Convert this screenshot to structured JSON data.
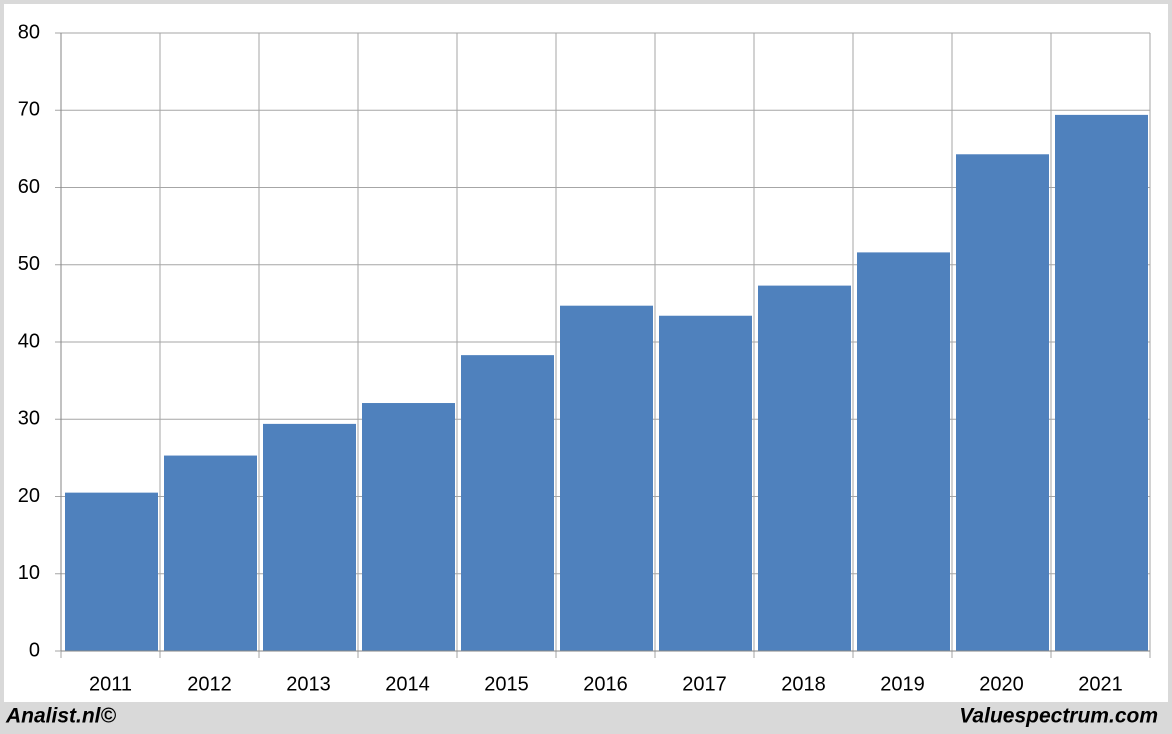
{
  "chart_data": {
    "type": "bar",
    "categories": [
      "2011",
      "2012",
      "2013",
      "2014",
      "2015",
      "2016",
      "2017",
      "2018",
      "2019",
      "2020",
      "2021"
    ],
    "values": [
      20.5,
      25.3,
      29.4,
      32.1,
      38.3,
      44.7,
      43.4,
      47.3,
      51.6,
      64.3,
      69.4
    ],
    "color": "#4f81bd",
    "ylim": [
      0,
      80
    ],
    "yticks": [
      0,
      10,
      20,
      30,
      40,
      50,
      60,
      70,
      80
    ],
    "grid": true,
    "source": "Analist.nl©",
    "credit": "Valuespectrum.com"
  }
}
